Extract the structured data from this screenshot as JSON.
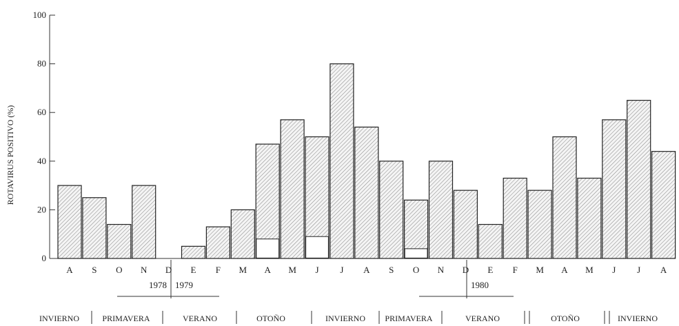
{
  "chart_data": {
    "type": "bar",
    "title": "",
    "xlabel": "",
    "ylabel": "ROTAVIRUS POSITIVO (%)",
    "ylim": [
      0,
      100
    ],
    "yticks": [
      "0",
      "20",
      "40",
      "60",
      "80",
      "100"
    ],
    "grid": false,
    "categories": [
      "A",
      "S",
      "O",
      "N",
      "D",
      "E",
      "F",
      "M",
      "A",
      "M",
      "J",
      "J",
      "A",
      "S",
      "O",
      "N",
      "D",
      "E",
      "F",
      "M",
      "A",
      "M",
      "J",
      "J",
      "A"
    ],
    "values": [
      30,
      25,
      14,
      30,
      0,
      5,
      13,
      20,
      47,
      57,
      50,
      80,
      54,
      40,
      24,
      40,
      28,
      14,
      33,
      28,
      50,
      33,
      57,
      65,
      44
    ],
    "inner_segments": [
      0,
      0,
      0,
      0,
      0,
      0,
      0,
      0,
      8,
      0,
      9,
      0,
      0,
      0,
      4,
      0,
      0,
      0,
      0,
      0,
      0,
      0,
      0,
      0,
      0
    ],
    "years": [
      "1978",
      "1979",
      "1980"
    ],
    "seasons": [
      "INVIERNO",
      "PRIMAVERA",
      "VERANO",
      "OTOÑO",
      "INVIERNO",
      "PRIMAVERA",
      "VERANO",
      "OTOÑO",
      "INVIERNO"
    ]
  }
}
